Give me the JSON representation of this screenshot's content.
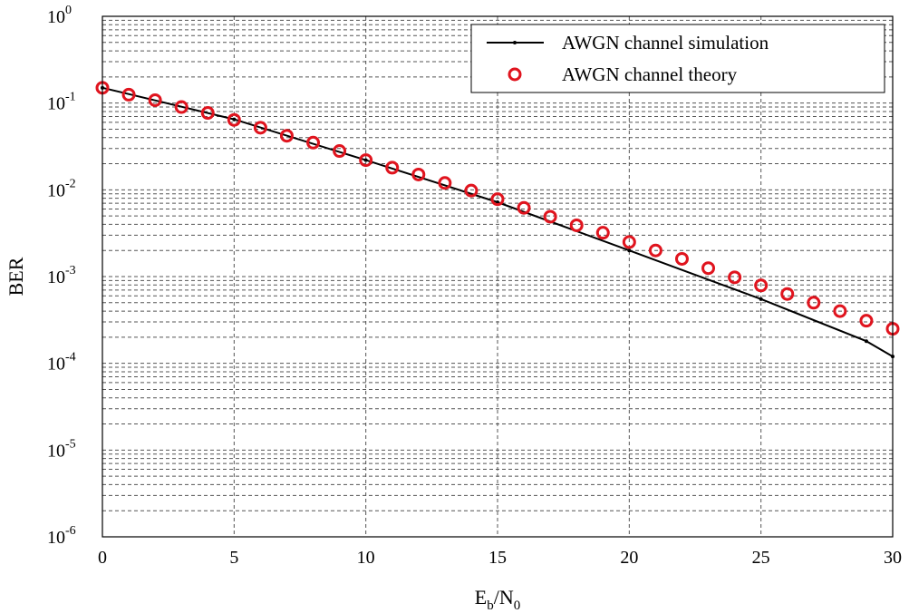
{
  "chart_data": {
    "type": "line",
    "xlabel": {
      "base": "E",
      "sub1": "b",
      "sep": "/N",
      "sub2": "0"
    },
    "ylabel": "BER",
    "xlim": [
      0,
      30
    ],
    "ylim": [
      1e-06,
      1
    ],
    "yscale": "log",
    "grid": true,
    "legend_position": "top-right",
    "x_ticks": [
      "0",
      "5",
      "10",
      "15",
      "20",
      "25",
      "30"
    ],
    "y_ticks": [
      {
        "base": "10",
        "exp": "0"
      },
      {
        "base": "10",
        "exp": "-1"
      },
      {
        "base": "10",
        "exp": "-2"
      },
      {
        "base": "10",
        "exp": "-3"
      },
      {
        "base": "10",
        "exp": "-4"
      },
      {
        "base": "10",
        "exp": "-5"
      },
      {
        "base": "10",
        "exp": "-6"
      }
    ],
    "series": [
      {
        "name": "AWGN channel simulation",
        "style": "line",
        "color": "#000000",
        "x": [
          0,
          5,
          10,
          15,
          20,
          25,
          29,
          30
        ],
        "y": [
          0.15,
          0.065,
          0.022,
          0.0072,
          0.002,
          0.00055,
          0.00018,
          0.00012
        ]
      },
      {
        "name": "AWGN channel theory",
        "style": "marker",
        "color": "#e0141e",
        "x": [
          0,
          1,
          2,
          3,
          4,
          5,
          6,
          7,
          8,
          9,
          10,
          11,
          12,
          13,
          14,
          15,
          16,
          17,
          18,
          19,
          20,
          21,
          22,
          23,
          24,
          25,
          26,
          27,
          28,
          29,
          30
        ],
        "y": [
          0.15,
          0.125,
          0.108,
          0.09,
          0.077,
          0.064,
          0.052,
          0.042,
          0.035,
          0.028,
          0.022,
          0.018,
          0.015,
          0.012,
          0.0098,
          0.0078,
          0.0062,
          0.0049,
          0.0039,
          0.0032,
          0.0025,
          0.002,
          0.0016,
          0.00125,
          0.00098,
          0.00079,
          0.00063,
          0.0005,
          0.0004,
          0.00031,
          0.00025
        ]
      }
    ]
  }
}
